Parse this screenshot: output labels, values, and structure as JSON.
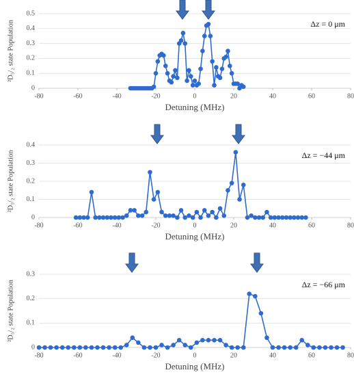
{
  "chart_data": [
    {
      "type": "line",
      "annotation": "Δz = 0 μm",
      "xlabel": "Detuning (MHz)",
      "ylabel": "²D₅/₂ state Population",
      "xlim": [
        -80,
        80
      ],
      "xticks": [
        -80,
        -60,
        -40,
        -20,
        0,
        20,
        40,
        60,
        80
      ],
      "ylim": [
        0,
        0.5
      ],
      "yticks": [
        0,
        0.1,
        0.2,
        0.3,
        0.4,
        0.5
      ],
      "grid": true,
      "x": [
        -33,
        -32,
        -31,
        -30,
        -29,
        -28,
        -27,
        -26,
        -25,
        -24,
        -23,
        -22,
        -21,
        -20,
        -19,
        -18,
        -17,
        -16,
        -15,
        -14,
        -13,
        -12,
        -11,
        -10,
        -9,
        -8,
        -7,
        -6,
        -5,
        -4,
        -3,
        -2,
        -1,
        0,
        1,
        2,
        3,
        4,
        5,
        6,
        7,
        8,
        9,
        10,
        11,
        12,
        13,
        14,
        15,
        16,
        17,
        18,
        19,
        20,
        21,
        22,
        23,
        24,
        25
      ],
      "series": [
        {
          "color": "#2f6bcf",
          "values": [
            0,
            0,
            0,
            0,
            0,
            0,
            0,
            0,
            0,
            0,
            0,
            0,
            0.01,
            0.1,
            0.18,
            0.22,
            0.23,
            0.22,
            0.15,
            0.1,
            0.05,
            0.04,
            0.08,
            0.12,
            0.07,
            0.3,
            0.32,
            0.37,
            0.3,
            0.05,
            0.12,
            0.08,
            0.02,
            0.05,
            0.02,
            0.03,
            0.13,
            0.25,
            0.35,
            0.42,
            0.43,
            0.35,
            0.18,
            0.02,
            0.14,
            0.08,
            0.07,
            0.13,
            0.2,
            0.21,
            0.25,
            0.15,
            0.1,
            0.03,
            0.03,
            0.03,
            0,
            0.02,
            0.01
          ]
        }
      ]
    },
    {
      "type": "line",
      "annotation": "Δz = −44 μm",
      "xlabel": "Detuning (MHz)",
      "ylabel": "²D₅/₂ state Population",
      "xlim": [
        -80,
        80
      ],
      "xticks": [
        -80,
        -60,
        -40,
        -20,
        0,
        20,
        40,
        60,
        80
      ],
      "ylim": [
        0,
        0.4
      ],
      "yticks": [
        0,
        0.1,
        0.2,
        0.3,
        0.4
      ],
      "grid": true,
      "x": [
        -61,
        -59,
        -57,
        -55,
        -53,
        -51,
        -49,
        -47,
        -45,
        -43,
        -41,
        -39,
        -37,
        -35,
        -33,
        -31,
        -29,
        -27,
        -25,
        -23,
        -21,
        -19,
        -17,
        -15,
        -13,
        -11,
        -9,
        -7,
        -5,
        -3,
        -1,
        1,
        3,
        5,
        7,
        9,
        11,
        13,
        15,
        17,
        19,
        21,
        23,
        25,
        27,
        29,
        31,
        33,
        35,
        37,
        39,
        41,
        43,
        45,
        47,
        49,
        51,
        53,
        55,
        57
      ],
      "series": [
        {
          "color": "#2f6bcf",
          "values": [
            0,
            0,
            0,
            0,
            0.14,
            0,
            0,
            0,
            0,
            0,
            0,
            0,
            0,
            0.01,
            0.04,
            0.04,
            0.01,
            0.01,
            0.03,
            0.25,
            0.1,
            0.14,
            0.03,
            0.01,
            0.01,
            0.01,
            0,
            0.04,
            0,
            0.01,
            0,
            0.03,
            0,
            0.04,
            0.01,
            0.03,
            0,
            0.05,
            0.01,
            0.15,
            0.19,
            0.36,
            0.1,
            0.18,
            0,
            0.01,
            0,
            0,
            0,
            0.03,
            0,
            0,
            0,
            0,
            0,
            0,
            0,
            0,
            0,
            0
          ]
        }
      ]
    },
    {
      "type": "line",
      "annotation": "Δz = −66 μm",
      "xlabel": "Detuning (MHz)",
      "ylabel": "²D₅/₂ state Population",
      "xlim": [
        -80,
        80
      ],
      "xticks": [
        -80,
        -60,
        -40,
        -20,
        0,
        20,
        40,
        60,
        80
      ],
      "ylim": [
        0,
        0.3
      ],
      "yticks": [
        0,
        0.1,
        0.2,
        0.3
      ],
      "grid": true,
      "x": [
        -80,
        -77,
        -74,
        -71,
        -68,
        -65,
        -62,
        -59,
        -56,
        -53,
        -50,
        -47,
        -44,
        -41,
        -38,
        -35,
        -32,
        -29,
        -26,
        -23,
        -20,
        -17,
        -14,
        -11,
        -8,
        -5,
        -2,
        1,
        4,
        7,
        10,
        13,
        16,
        19,
        22,
        25,
        28,
        31,
        34,
        37,
        40,
        43,
        46,
        49,
        52,
        55,
        58,
        61,
        64,
        67,
        70,
        73,
        76
      ],
      "series": [
        {
          "color": "#2f6bcf",
          "values": [
            0,
            0,
            0,
            0,
            0,
            0,
            0,
            0,
            0,
            0,
            0,
            0,
            0,
            0,
            0,
            0.01,
            0.04,
            0.02,
            0,
            0,
            0,
            0.01,
            0,
            0.01,
            0.03,
            0.01,
            0,
            0.02,
            0.03,
            0.03,
            0.03,
            0.03,
            0.01,
            0,
            0,
            0,
            0.22,
            0.21,
            0.14,
            0.04,
            0,
            0,
            0,
            0,
            0,
            0.03,
            0.01,
            0,
            0,
            0,
            0,
            0,
            0
          ]
        }
      ]
    }
  ]
}
